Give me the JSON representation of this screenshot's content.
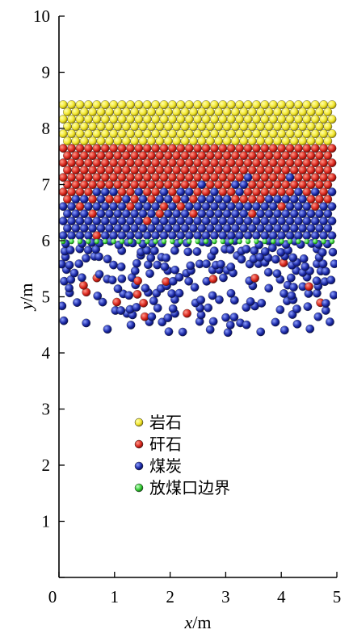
{
  "chart_data": {
    "type": "scatter",
    "xlabel_var": "x",
    "xlabel_unit": "/m",
    "ylabel_var": "y",
    "ylabel_unit": "/m",
    "xlim": [
      0,
      5
    ],
    "ylim": [
      0,
      10
    ],
    "xticks": [
      "0",
      "1",
      "2",
      "3",
      "4",
      "5"
    ],
    "yticks": [
      "0",
      "1",
      "2",
      "3",
      "4",
      "5",
      "6",
      "7",
      "8",
      "9",
      "10"
    ],
    "grid": false,
    "legend_position": "lower-center",
    "series": [
      {
        "name": "岩石",
        "color": "#f2e62e",
        "region": {
          "x": [
            0,
            5
          ],
          "y": [
            7.65,
            8.45
          ]
        }
      },
      {
        "name": "矸石",
        "color": "#d9261c",
        "region": {
          "x": [
            0,
            5
          ],
          "y": [
            6.8,
            7.7
          ]
        }
      },
      {
        "name": "煤炭",
        "color": "#1c2aa8",
        "region": {
          "x": [
            0,
            5
          ],
          "y": [
            4.55,
            7.2
          ]
        }
      },
      {
        "name": "放煤口边界",
        "color": "#33cc33",
        "region": {
          "x": [
            0,
            5
          ],
          "y": [
            5.98,
            6.02
          ]
        }
      }
    ]
  }
}
